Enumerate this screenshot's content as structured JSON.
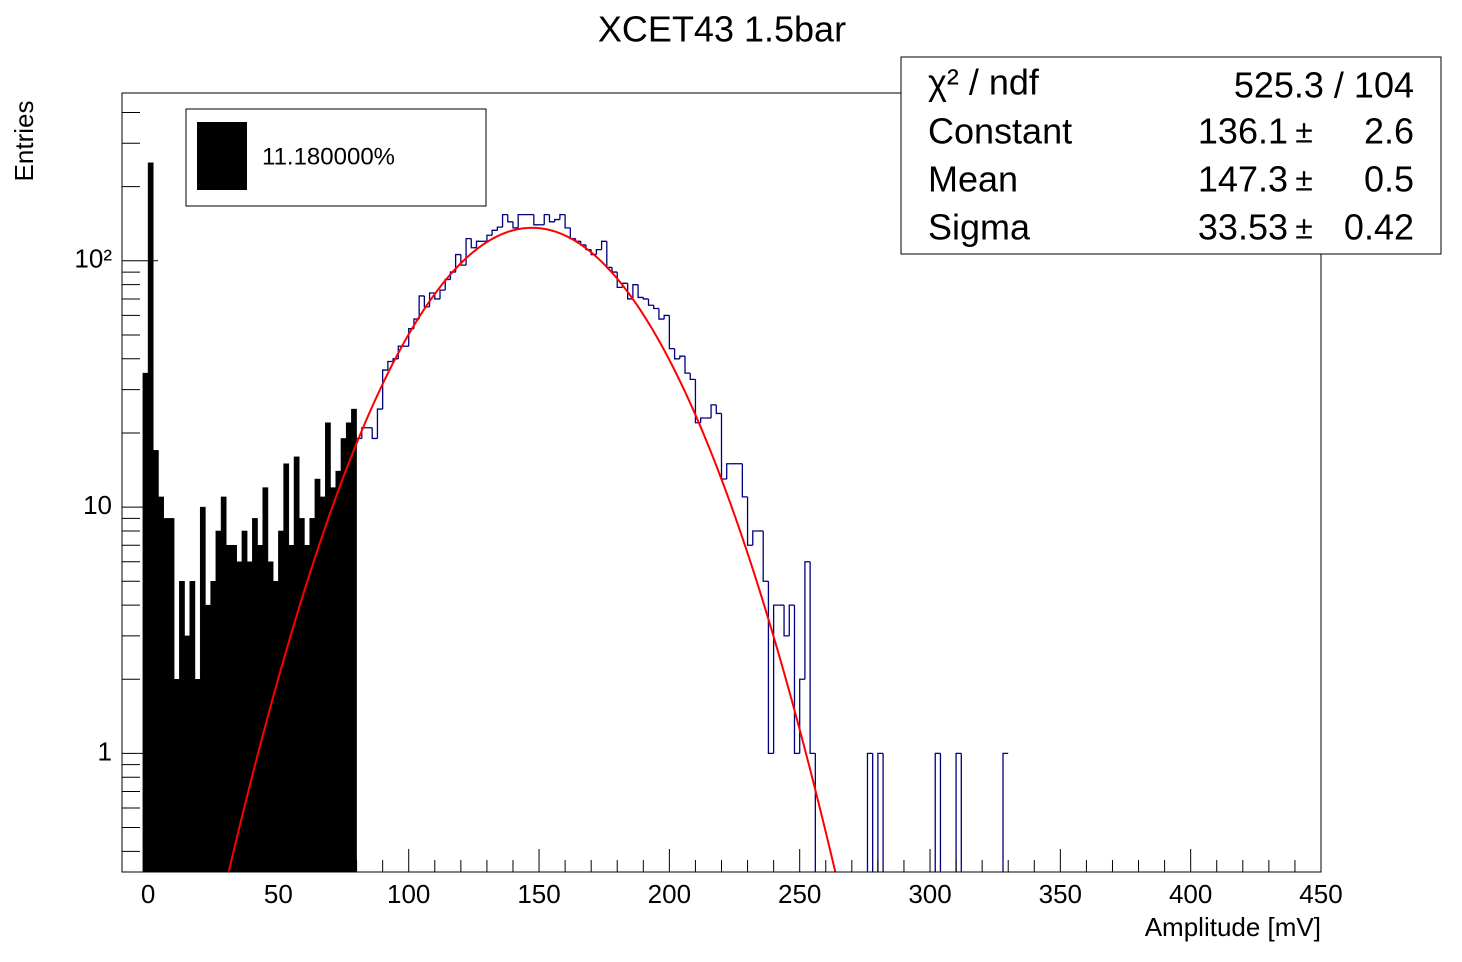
{
  "chart_data": {
    "type": "histogram",
    "title": "XCET43 1.5bar",
    "x_label": "Amplitude [mV]",
    "y_label": "Entries",
    "log_y": true,
    "xlim": [
      -10,
      450
    ],
    "ylim": [
      0.33,
      480
    ],
    "xticks": [
      0,
      50,
      100,
      150,
      200,
      250,
      300,
      350,
      400,
      450
    ],
    "xminor_ticks": [
      -10,
      10,
      20,
      30,
      40,
      60,
      70,
      80,
      90,
      110,
      120,
      130,
      140,
      160,
      170,
      180,
      190,
      210,
      220,
      230,
      240,
      260,
      270,
      280,
      290,
      310,
      320,
      330,
      340,
      360,
      370,
      380,
      390,
      410,
      420,
      430,
      440
    ],
    "yticks": [
      1,
      10,
      {
        "value": 100,
        "label": "10²"
      }
    ],
    "yminor_ticks": [
      0.4,
      0.5,
      0.6,
      0.7,
      0.8,
      0.9,
      2,
      3,
      4,
      5,
      6,
      7,
      8,
      9,
      20,
      30,
      40,
      50,
      60,
      70,
      80,
      90,
      200,
      300,
      400
    ],
    "series": [
      {
        "name": "11.180000%",
        "color": "#000000",
        "style": "filled",
        "bins": [
          -2,
          0,
          2,
          4,
          6,
          8,
          10,
          12,
          14,
          16,
          18,
          20,
          22,
          24,
          26,
          28,
          30,
          32,
          34,
          36,
          38,
          40,
          42,
          44,
          46,
          48,
          50,
          52,
          54,
          56,
          58,
          60,
          62,
          64,
          66,
          68,
          70,
          72,
          74,
          76,
          78,
          80
        ],
        "values": [
          35,
          250,
          17,
          11,
          9,
          9,
          2,
          5,
          3,
          5,
          2,
          10,
          4,
          5,
          8,
          11,
          7,
          7,
          6,
          8,
          6,
          9,
          7,
          12,
          6,
          5,
          8,
          15,
          7,
          16,
          9,
          7,
          9,
          13,
          11,
          22,
          12,
          14,
          19,
          22,
          25
        ]
      },
      {
        "color": "#000080",
        "style": "outline",
        "bins": [
          80,
          82,
          84,
          86,
          88,
          90,
          92,
          94,
          96,
          98,
          100,
          102,
          104,
          106,
          108,
          110,
          112,
          114,
          116,
          118,
          120,
          122,
          124,
          126,
          128,
          130,
          132,
          134,
          136,
          138,
          140,
          142,
          144,
          146,
          148,
          150,
          152,
          154,
          156,
          158,
          160,
          162,
          164,
          166,
          168,
          170,
          172,
          174,
          176,
          178,
          180,
          182,
          184,
          186,
          188,
          190,
          192,
          194,
          196,
          198,
          200,
          202,
          204,
          206,
          208,
          210,
          212,
          214,
          216,
          218,
          220,
          222,
          224,
          226,
          228,
          230,
          232,
          234,
          236,
          238,
          240,
          242,
          244,
          246,
          248,
          250,
          252,
          254,
          256,
          258,
          260,
          262,
          264,
          266,
          268,
          270,
          272,
          274,
          276,
          278,
          280,
          282,
          284,
          286,
          288,
          290,
          292,
          294,
          296,
          298,
          300,
          302,
          304,
          306,
          308,
          310,
          312,
          314,
          316,
          318,
          320,
          322,
          324,
          326,
          328,
          330
        ],
        "values": [
          19,
          21,
          21,
          19,
          25,
          36,
          39,
          40,
          45,
          45,
          53,
          58,
          72,
          65,
          74,
          70,
          76,
          84,
          90,
          106,
          96,
          123,
          113,
          120,
          120,
          127,
          133,
          137,
          154,
          144,
          136,
          154,
          154,
          154,
          140,
          140,
          154,
          144,
          147,
          154,
          136,
          123,
          120,
          116,
          111,
          106,
          111,
          120,
          94,
          90,
          78,
          81,
          70,
          80,
          71,
          70,
          66,
          64,
          58,
          60,
          44,
          40,
          41,
          35,
          33,
          22,
          23,
          23,
          26,
          24,
          13,
          15,
          15,
          15,
          11,
          7,
          8,
          8,
          5,
          1,
          4,
          4,
          3,
          4,
          1,
          2,
          6,
          1,
          0,
          0,
          0,
          0,
          0,
          0,
          0,
          0,
          0,
          0,
          1,
          0,
          1,
          0,
          0,
          0,
          0,
          0,
          0,
          0,
          0,
          0,
          0,
          1,
          0,
          0,
          0,
          1,
          0,
          0,
          0,
          0,
          0,
          0,
          0,
          0,
          1
        ]
      }
    ],
    "fit_color": "#ff0000",
    "stats": {
      "separator": "±",
      "chi2": {
        "label": "χ² / ndf",
        "value": "525.3 / 104"
      },
      "rows": [
        {
          "label": "Constant",
          "value": 136.1,
          "error": 2.6
        },
        {
          "label": "Mean",
          "value": 147.3,
          "error": 0.5
        },
        {
          "label": "Sigma",
          "value": 33.53,
          "error": 0.42
        }
      ]
    }
  }
}
